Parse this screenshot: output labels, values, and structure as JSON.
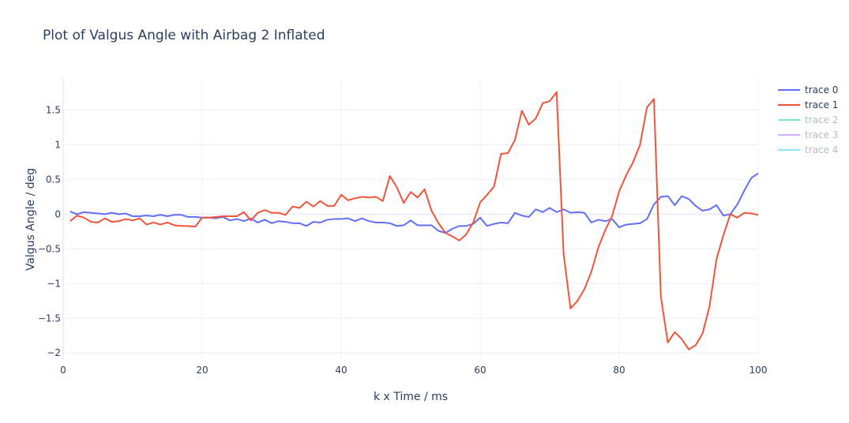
{
  "chart_data": {
    "type": "line",
    "title": "Plot of Valgus Angle with Airbag 2 Inflated",
    "xlabel": "k x Time / ms",
    "ylabel": "Valgus Angle / deg",
    "xlim": [
      0,
      100
    ],
    "ylim": [
      -2.1,
      1.95
    ],
    "xticks": [
      0,
      20,
      40,
      60,
      80,
      100
    ],
    "xtick_labels": [
      "0",
      "20",
      "40",
      "60",
      "80",
      "100"
    ],
    "yticks": [
      -2,
      -1.5,
      -1,
      -0.5,
      0,
      0.5,
      1,
      1.5
    ],
    "ytick_labels": [
      "−2",
      "−1.5",
      "−1",
      "−0.5",
      "0",
      "0.5",
      "1",
      "1.5"
    ],
    "grid": true,
    "legend_position": "top-right",
    "series": [
      {
        "name": "trace 0",
        "color": "#636efa",
        "visible": true,
        "x": [
          1,
          2,
          3,
          4,
          5,
          6,
          7,
          8,
          9,
          10,
          11,
          12,
          13,
          14,
          15,
          16,
          17,
          18,
          19,
          20,
          21,
          22,
          23,
          24,
          25,
          26,
          27,
          28,
          29,
          30,
          31,
          32,
          33,
          34,
          35,
          36,
          37,
          38,
          39,
          40,
          41,
          42,
          43,
          44,
          45,
          46,
          47,
          48,
          49,
          50,
          51,
          52,
          53,
          54,
          55,
          56,
          57,
          58,
          59,
          60,
          61,
          62,
          63,
          64,
          65,
          66,
          67,
          68,
          69,
          70,
          71,
          72,
          73,
          74,
          75,
          76,
          77,
          78,
          79,
          80,
          81,
          82,
          83,
          84,
          85,
          86,
          87,
          88,
          89,
          90,
          91,
          92,
          93,
          94,
          95,
          96,
          97,
          98,
          99,
          100
        ],
        "y": [
          0.04,
          0.0,
          0.03,
          0.02,
          0.01,
          0.0,
          0.02,
          0.0,
          0.01,
          -0.03,
          -0.03,
          -0.02,
          -0.03,
          -0.01,
          -0.03,
          -0.01,
          -0.01,
          -0.04,
          -0.04,
          -0.05,
          -0.05,
          -0.06,
          -0.04,
          -0.09,
          -0.07,
          -0.1,
          -0.06,
          -0.12,
          -0.08,
          -0.13,
          -0.1,
          -0.11,
          -0.13,
          -0.13,
          -0.17,
          -0.11,
          -0.12,
          -0.08,
          -0.07,
          -0.07,
          -0.06,
          -0.1,
          -0.06,
          -0.1,
          -0.12,
          -0.12,
          -0.13,
          -0.17,
          -0.16,
          -0.09,
          -0.16,
          -0.16,
          -0.16,
          -0.24,
          -0.27,
          -0.21,
          -0.17,
          -0.17,
          -0.14,
          -0.05,
          -0.17,
          -0.14,
          -0.12,
          -0.13,
          0.02,
          -0.02,
          -0.04,
          0.07,
          0.03,
          0.09,
          0.03,
          0.07,
          0.02,
          0.03,
          0.02,
          -0.12,
          -0.08,
          -0.1,
          -0.07,
          -0.19,
          -0.15,
          -0.14,
          -0.13,
          -0.07,
          0.14,
          0.25,
          0.26,
          0.13,
          0.26,
          0.22,
          0.12,
          0.05,
          0.07,
          0.13,
          -0.02,
          0.0,
          0.14,
          0.34,
          0.52,
          0.59
        ]
      },
      {
        "name": "trace 1",
        "color": "#ef553b",
        "visible": true,
        "x": [
          1,
          2,
          3,
          4,
          5,
          6,
          7,
          8,
          9,
          10,
          11,
          12,
          13,
          14,
          15,
          16,
          17,
          18,
          19,
          20,
          21,
          22,
          23,
          24,
          25,
          26,
          27,
          28,
          29,
          30,
          31,
          32,
          33,
          34,
          35,
          36,
          37,
          38,
          39,
          40,
          41,
          42,
          43,
          44,
          45,
          46,
          47,
          48,
          49,
          50,
          51,
          52,
          53,
          54,
          55,
          56,
          57,
          58,
          59,
          60,
          61,
          62,
          63,
          64,
          65,
          66,
          67,
          68,
          69,
          70,
          71,
          72,
          73,
          74,
          75,
          76,
          77,
          78,
          79,
          80,
          81,
          82,
          83,
          84,
          85,
          86,
          87,
          88,
          89,
          90,
          91,
          92,
          93,
          94,
          95,
          96,
          97,
          98,
          99,
          100
        ],
        "y": [
          -0.1,
          -0.02,
          -0.05,
          -0.11,
          -0.12,
          -0.06,
          -0.11,
          -0.1,
          -0.07,
          -0.09,
          -0.06,
          -0.15,
          -0.12,
          -0.15,
          -0.12,
          -0.16,
          -0.17,
          -0.17,
          -0.18,
          -0.05,
          -0.05,
          -0.04,
          -0.03,
          -0.03,
          -0.03,
          0.03,
          -0.09,
          0.02,
          0.06,
          0.02,
          0.02,
          -0.01,
          0.11,
          0.09,
          0.18,
          0.11,
          0.19,
          0.12,
          0.12,
          0.28,
          0.2,
          0.23,
          0.25,
          0.24,
          0.25,
          0.19,
          0.55,
          0.39,
          0.16,
          0.32,
          0.24,
          0.36,
          0.05,
          -0.13,
          -0.27,
          -0.32,
          -0.38,
          -0.29,
          -0.12,
          0.17,
          0.28,
          0.4,
          0.87,
          0.88,
          1.07,
          1.49,
          1.29,
          1.38,
          1.6,
          1.63,
          1.76,
          -0.57,
          -1.36,
          -1.25,
          -1.08,
          -0.83,
          -0.48,
          -0.23,
          -0.02,
          0.33,
          0.56,
          0.75,
          1.0,
          1.54,
          1.66,
          -1.19,
          -1.85,
          -1.7,
          -1.8,
          -1.95,
          -1.89,
          -1.72,
          -1.33,
          -0.65,
          -0.3,
          0.0,
          -0.05,
          0.02,
          0.01,
          -0.01
        ]
      },
      {
        "name": "trace 2",
        "color": "#00cc96",
        "visible": false,
        "x": [],
        "y": []
      },
      {
        "name": "trace 3",
        "color": "#ab63fa",
        "visible": false,
        "x": [],
        "y": []
      },
      {
        "name": "trace 4",
        "color": "#19d3f3",
        "visible": false,
        "x": [],
        "y": []
      }
    ]
  }
}
